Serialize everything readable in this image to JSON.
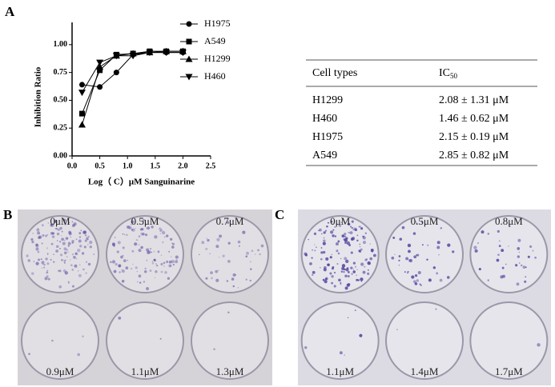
{
  "panel_labels": [
    "A",
    "B",
    "C"
  ],
  "chart_data": {
    "type": "line",
    "xlabel": "Log（ C）μM Sanguinarine",
    "ylabel": "Inhibition Ratio",
    "x": [
      0.18,
      0.5,
      0.8,
      1.1,
      1.4,
      1.7,
      2.0
    ],
    "series": [
      {
        "name": "H1975",
        "color": "#000000",
        "marker": "circle",
        "values": [
          0.64,
          0.62,
          0.75,
          0.91,
          0.93,
          0.93,
          0.93
        ]
      },
      {
        "name": "A549",
        "color": "#000000",
        "marker": "square",
        "values": [
          0.38,
          0.77,
          0.91,
          0.92,
          0.94,
          0.94,
          0.94
        ]
      },
      {
        "name": "H1299",
        "color": "#000000",
        "marker": "triangle",
        "values": [
          0.28,
          0.8,
          0.9,
          0.92,
          0.93,
          0.94,
          0.94
        ]
      },
      {
        "name": "H460",
        "color": "#000000",
        "marker": "triangle-down",
        "values": [
          0.57,
          0.84,
          0.9,
          0.9,
          0.93,
          0.93,
          0.93
        ]
      }
    ],
    "xlim": [
      0,
      2.5
    ],
    "xticks": [
      {
        "value": 0,
        "label": "0.0"
      },
      {
        "value": 0.5,
        "label": "0.5"
      },
      {
        "value": 1,
        "label": "1.0"
      },
      {
        "value": 1.5,
        "label": "1.5"
      },
      {
        "value": 2,
        "label": "2.0"
      },
      {
        "value": 2.5,
        "label": "2.5"
      }
    ],
    "ylim": [
      0,
      1.2
    ],
    "yticks": [
      {
        "value": 0,
        "label": "0.00"
      },
      {
        "value": 0.25,
        "label": "0.25"
      },
      {
        "value": 0.5,
        "label": "0.50"
      },
      {
        "value": 0.75,
        "label": "0.75"
      },
      {
        "value": 1,
        "label": "1.00"
      }
    ],
    "legend": "right"
  },
  "table": {
    "header": {
      "cell": "Cell types",
      "ic": "IC",
      "ic_sub": "50"
    },
    "rows": [
      [
        "H1299",
        "2.08 ± 1.31 μM"
      ],
      [
        "H460",
        "1.46 ± 0.62 μM"
      ],
      [
        "H1975",
        "2.15 ± 0.19 μM"
      ],
      [
        "A549",
        "2.85 ± 0.82 μM"
      ]
    ]
  },
  "plates": [
    {
      "wells": [
        "0μM",
        "0.5μM",
        "0.7μM",
        "0.9μM",
        "1.1μM",
        "1.3μM"
      ]
    },
    {
      "wells": [
        "0μM",
        "0.5μM",
        "0.8μM",
        "1.1μM",
        "1.4μM",
        "1.7μM"
      ]
    }
  ]
}
